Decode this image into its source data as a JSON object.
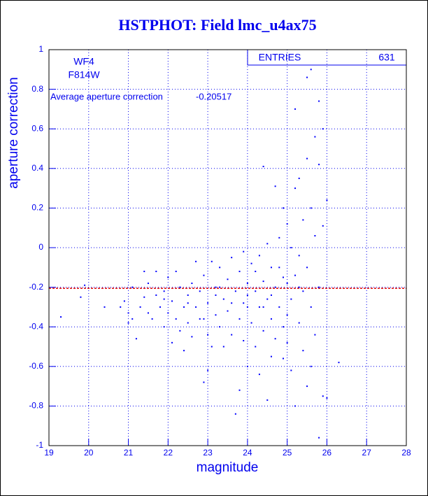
{
  "chart_data": {
    "type": "scatter",
    "title": "HSTPHOT: Field lmc_u4ax75",
    "xlabel": "magnitude",
    "ylabel": "aperture correction",
    "annotations": [
      "WF4",
      "F814W"
    ],
    "average_label": "Average aperture correction",
    "average": -0.20517,
    "average_color": "#dd0000",
    "stats": {
      "label": "ENTRIES",
      "value": 631
    },
    "xlim": [
      19,
      28
    ],
    "ylim": [
      -1,
      1
    ],
    "xticks": [
      19,
      20,
      21,
      22,
      23,
      24,
      25,
      26,
      27,
      28
    ],
    "yticks": [
      -1,
      -0.8,
      -0.6,
      -0.4,
      -0.2,
      0,
      0.2,
      0.4,
      0.6,
      0.8,
      1
    ],
    "grid": true,
    "color": "#0000ff",
    "x": [
      19.3,
      19.8,
      19.9,
      20.4,
      20.8,
      20.9,
      21.0,
      21.0,
      21.1,
      21.1,
      21.2,
      21.3,
      21.4,
      21.4,
      21.5,
      21.5,
      21.6,
      21.7,
      21.7,
      21.8,
      21.9,
      21.9,
      22.0,
      22.0,
      22.1,
      22.1,
      22.2,
      22.2,
      22.3,
      22.3,
      22.4,
      22.4,
      22.5,
      22.5,
      22.6,
      22.6,
      22.7,
      22.7,
      22.8,
      22.8,
      22.9,
      22.9,
      23.0,
      23.0,
      23.0,
      23.1,
      23.1,
      23.2,
      23.2,
      23.3,
      23.3,
      23.4,
      23.4,
      23.5,
      23.5,
      23.6,
      23.6,
      23.7,
      23.7,
      23.8,
      23.8,
      23.9,
      23.9,
      23.9,
      24.0,
      24.0,
      24.0,
      24.1,
      24.1,
      24.2,
      24.2,
      24.3,
      24.3,
      24.3,
      24.4,
      24.4,
      24.4,
      24.5,
      24.5,
      24.5,
      24.6,
      24.6,
      24.6,
      24.7,
      24.7,
      24.7,
      24.8,
      24.8,
      24.8,
      24.9,
      24.9,
      24.9,
      25.0,
      25.0,
      25.0,
      25.0,
      25.1,
      25.1,
      25.1,
      25.2,
      25.2,
      25.2,
      25.2,
      25.3,
      25.3,
      25.3,
      25.4,
      25.4,
      25.4,
      25.5,
      25.5,
      25.5,
      25.5,
      25.6,
      25.6,
      25.6,
      25.7,
      25.7,
      25.7,
      25.8,
      25.8,
      25.8,
      25.8,
      25.9,
      25.9,
      25.9,
      26.0,
      26.0,
      26.3,
      25.6,
      24.9,
      23.3,
      22.5,
      21.9,
      23.8,
      24.2,
      25.3,
      24.6,
      23.6,
      22.9,
      24.0,
      24.4,
      23.2
    ],
    "values": [
      -0.35,
      -0.25,
      -0.19,
      -0.3,
      -0.3,
      -0.27,
      -0.38,
      -0.33,
      -0.36,
      -0.2,
      -0.46,
      -0.3,
      -0.25,
      -0.12,
      -0.33,
      -0.18,
      -0.36,
      -0.24,
      -0.12,
      -0.3,
      -0.22,
      -0.4,
      -0.15,
      -0.33,
      -0.27,
      -0.48,
      -0.12,
      -0.36,
      -0.2,
      -0.42,
      -0.3,
      -0.52,
      -0.24,
      -0.38,
      -0.18,
      -0.45,
      -0.07,
      -0.3,
      -0.36,
      -0.22,
      -0.68,
      -0.14,
      -0.28,
      -0.44,
      -0.62,
      -0.07,
      -0.5,
      -0.2,
      -0.34,
      -0.1,
      -0.4,
      -0.26,
      -0.5,
      -0.16,
      -0.32,
      -0.05,
      -0.44,
      -0.84,
      -0.22,
      -0.36,
      -0.12,
      -0.28,
      -0.47,
      -0.02,
      -0.3,
      -0.18,
      -0.6,
      -0.38,
      -0.08,
      -0.22,
      -0.5,
      -0.04,
      -0.3,
      -0.64,
      0.41,
      -0.17,
      -0.42,
      0.02,
      -0.26,
      -0.77,
      -0.1,
      -0.36,
      -0.55,
      0.31,
      -0.2,
      -0.46,
      0.05,
      -0.3,
      -0.1,
      0.2,
      -0.4,
      -0.56,
      0.12,
      -0.18,
      -0.34,
      -0.48,
      0.0,
      -0.26,
      -0.62,
      0.7,
      0.3,
      -0.14,
      -0.8,
      0.35,
      -0.04,
      -0.38,
      0.14,
      -0.22,
      -0.52,
      0.86,
      0.45,
      -0.1,
      -0.7,
      0.9,
      0.2,
      -0.3,
      0.56,
      0.06,
      -0.44,
      0.74,
      0.42,
      -0.2,
      -0.96,
      0.6,
      0.11,
      -0.75,
      0.24,
      -0.76,
      -0.58,
      -0.6,
      -0.15,
      -0.2,
      -0.28,
      -0.26,
      -0.72,
      -0.12,
      -0.2,
      -0.24,
      -0.28,
      -0.36,
      -0.24,
      -0.3,
      -0.24
    ]
  }
}
